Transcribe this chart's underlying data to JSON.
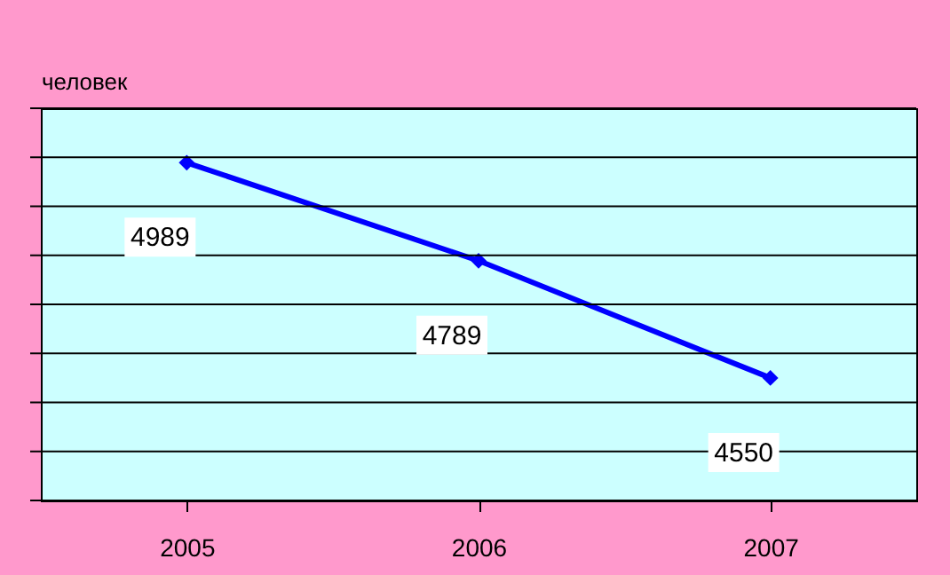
{
  "chart_data": {
    "type": "line",
    "ylabel": "человек",
    "categories": [
      "2005",
      "2006",
      "2007"
    ],
    "series": [
      {
        "color": "#0000ff",
        "values": [
          4989,
          4789,
          4550
        ]
      }
    ],
    "ylim": [
      4300,
      5100
    ],
    "yticks": [
      {
        "value": 4300,
        "label": null
      },
      {
        "value": 4400,
        "label": null
      },
      {
        "value": 4500,
        "label": null
      },
      {
        "value": 4600,
        "label": null
      },
      {
        "value": 4700,
        "label": null
      },
      {
        "value": 4800,
        "label": null
      },
      {
        "value": 4900,
        "label": null
      },
      {
        "value": 5000,
        "label": null
      },
      {
        "value": 5100,
        "label": null
      }
    ],
    "tick_labels": "x",
    "grid": "y",
    "marker": "diamond",
    "line_style": "solid",
    "data_labels": true
  }
}
